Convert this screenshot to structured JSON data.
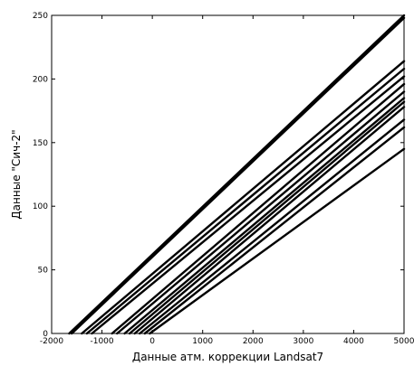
{
  "chart_data": {
    "type": "line",
    "xlabel": "Данные атм. коррекции Landsat7",
    "ylabel": "Данные \"Сич-2\"",
    "xlim": [
      -2000,
      5000
    ],
    "ylim": [
      0,
      250
    ],
    "xticks": [
      -2000,
      -1000,
      0,
      1000,
      2000,
      3000,
      4000,
      5000
    ],
    "yticks": [
      0,
      50,
      100,
      150,
      200,
      250
    ],
    "xtick_labels": [
      "-2000",
      "-1000",
      "0",
      "1000",
      "2000",
      "3000",
      "4000",
      "5000"
    ],
    "ytick_labels": [
      "0",
      "50",
      "100",
      "150",
      "200",
      "250"
    ],
    "grid": false,
    "series": [
      {
        "x": [
          -1650,
          5000
        ],
        "y": [
          0,
          250
        ]
      },
      {
        "x": [
          -1600,
          5000
        ],
        "y": [
          0,
          248
        ]
      },
      {
        "x": [
          -1400,
          5000
        ],
        "y": [
          0,
          214
        ]
      },
      {
        "x": [
          -1300,
          5000
        ],
        "y": [
          0,
          208
        ]
      },
      {
        "x": [
          -1200,
          5000
        ],
        "y": [
          0,
          202
        ]
      },
      {
        "x": [
          -800,
          5000
        ],
        "y": [
          0,
          196
        ]
      },
      {
        "x": [
          -700,
          5000
        ],
        "y": [
          0,
          190
        ]
      },
      {
        "x": [
          -550,
          5000
        ],
        "y": [
          0,
          185
        ]
      },
      {
        "x": [
          -450,
          5000
        ],
        "y": [
          0,
          182
        ]
      },
      {
        "x": [
          -350,
          5000
        ],
        "y": [
          0,
          178
        ]
      },
      {
        "x": [
          -250,
          5000
        ],
        "y": [
          0,
          168
        ]
      },
      {
        "x": [
          -150,
          5000
        ],
        "y": [
          0,
          162
        ]
      },
      {
        "x": [
          -50,
          5000
        ],
        "y": [
          0,
          145
        ]
      }
    ]
  }
}
